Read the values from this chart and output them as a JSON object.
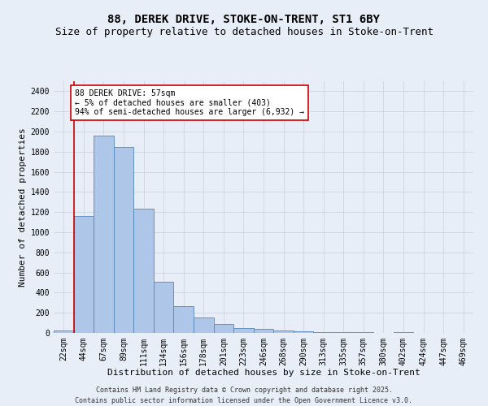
{
  "title1": "88, DEREK DRIVE, STOKE-ON-TRENT, ST1 6BY",
  "title2": "Size of property relative to detached houses in Stoke-on-Trent",
  "xlabel": "Distribution of detached houses by size in Stoke-on-Trent",
  "ylabel": "Number of detached properties",
  "categories": [
    "22sqm",
    "44sqm",
    "67sqm",
    "89sqm",
    "111sqm",
    "134sqm",
    "156sqm",
    "178sqm",
    "201sqm",
    "223sqm",
    "246sqm",
    "268sqm",
    "290sqm",
    "313sqm",
    "335sqm",
    "357sqm",
    "380sqm",
    "402sqm",
    "424sqm",
    "447sqm",
    "469sqm"
  ],
  "values": [
    25,
    1160,
    1960,
    1850,
    1230,
    510,
    270,
    155,
    90,
    45,
    38,
    28,
    18,
    12,
    8,
    5,
    2,
    8,
    2,
    2,
    2
  ],
  "bar_color": "#aec6e8",
  "bar_edge_color": "#5588bb",
  "bg_color": "#e8eef8",
  "vline_x": 1.0,
  "vline_color": "#cc0000",
  "annotation_text": "88 DEREK DRIVE: 57sqm\n← 5% of detached houses are smaller (403)\n94% of semi-detached houses are larger (6,932) →",
  "annotation_box_color": "#ffffff",
  "annotation_box_edge": "#cc0000",
  "ylim": [
    0,
    2500
  ],
  "yticks": [
    0,
    200,
    400,
    600,
    800,
    1000,
    1200,
    1400,
    1600,
    1800,
    2000,
    2200,
    2400
  ],
  "footer1": "Contains HM Land Registry data © Crown copyright and database right 2025.",
  "footer2": "Contains public sector information licensed under the Open Government Licence v3.0.",
  "grid_color": "#c8d0dc",
  "title_fontsize": 10,
  "subtitle_fontsize": 9,
  "axis_label_fontsize": 8,
  "tick_fontsize": 7,
  "annotation_fontsize": 7,
  "footer_fontsize": 6
}
